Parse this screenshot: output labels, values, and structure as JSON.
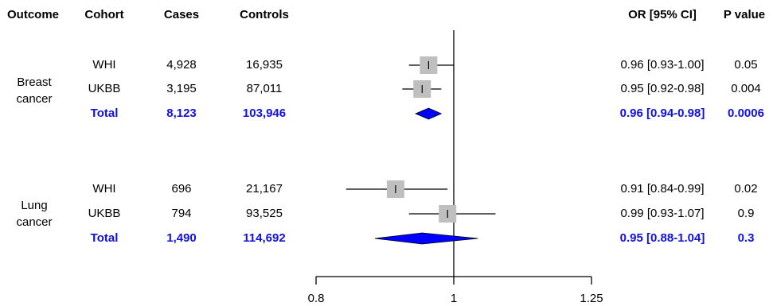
{
  "headers": {
    "outcome": "Outcome",
    "cohort": "Cohort",
    "cases": "Cases",
    "controls": "Controls",
    "or_ci": "OR [95% CI]",
    "p_value": "P value"
  },
  "groups": [
    {
      "outcome": "Breast cancer",
      "outcome_lines": [
        "Breast",
        "cancer"
      ],
      "rows": [
        {
          "cohort": "WHI",
          "cases": "4,928",
          "controls": "16,935",
          "or_ci": "0.96 [0.93-1.00]",
          "p": "0.05",
          "total": false
        },
        {
          "cohort": "UKBB",
          "cases": "3,195",
          "controls": "87,011",
          "or_ci": "0.95 [0.92-0.98]",
          "p": "0.004",
          "total": false
        },
        {
          "cohort": "Total",
          "cases": "8,123",
          "controls": "103,946",
          "or_ci": "0.96 [0.94-0.98]",
          "p": "0.0006",
          "total": true
        }
      ]
    },
    {
      "outcome": "Lung cancer",
      "outcome_lines": [
        "Lung",
        "cancer"
      ],
      "rows": [
        {
          "cohort": "WHI",
          "cases": "696",
          "controls": "21,167",
          "or_ci": "0.91 [0.84-0.99]",
          "p": "0.02",
          "total": false
        },
        {
          "cohort": "UKBB",
          "cases": "794",
          "controls": "93,525",
          "or_ci": "0.99 [0.93-1.07]",
          "p": "0.9",
          "total": false
        },
        {
          "cohort": "Total",
          "cases": "1,490",
          "controls": "114,692",
          "or_ci": "0.95 [0.88-1.04]",
          "p": "0.3",
          "total": true
        }
      ]
    }
  ],
  "colors": {
    "total_text": "#1010e6",
    "diamond": "#0000ff",
    "box": "#bfbfbf",
    "line": "#000000"
  },
  "chart_data": {
    "type": "forest",
    "xlim": [
      0.8,
      1.25
    ],
    "xticks": [
      0.8,
      1,
      1.25
    ],
    "xtick_labels": [
      "0.8",
      "1",
      "1.25"
    ],
    "reference_line": 1,
    "x_scale": "log",
    "series": [
      {
        "name": "Breast cancer WHI",
        "kind": "study",
        "or": 0.96,
        "lower": 0.93,
        "upper": 1.0
      },
      {
        "name": "Breast cancer UKBB",
        "kind": "study",
        "or": 0.95,
        "lower": 0.92,
        "upper": 0.98
      },
      {
        "name": "Breast cancer Total",
        "kind": "pooled",
        "or": 0.96,
        "lower": 0.94,
        "upper": 0.98
      },
      {
        "name": "Lung cancer WHI",
        "kind": "study",
        "or": 0.91,
        "lower": 0.84,
        "upper": 0.99
      },
      {
        "name": "Lung cancer UKBB",
        "kind": "study",
        "or": 0.99,
        "lower": 0.93,
        "upper": 1.07
      },
      {
        "name": "Lung cancer Total",
        "kind": "pooled",
        "or": 0.95,
        "lower": 0.88,
        "upper": 1.04
      }
    ]
  }
}
